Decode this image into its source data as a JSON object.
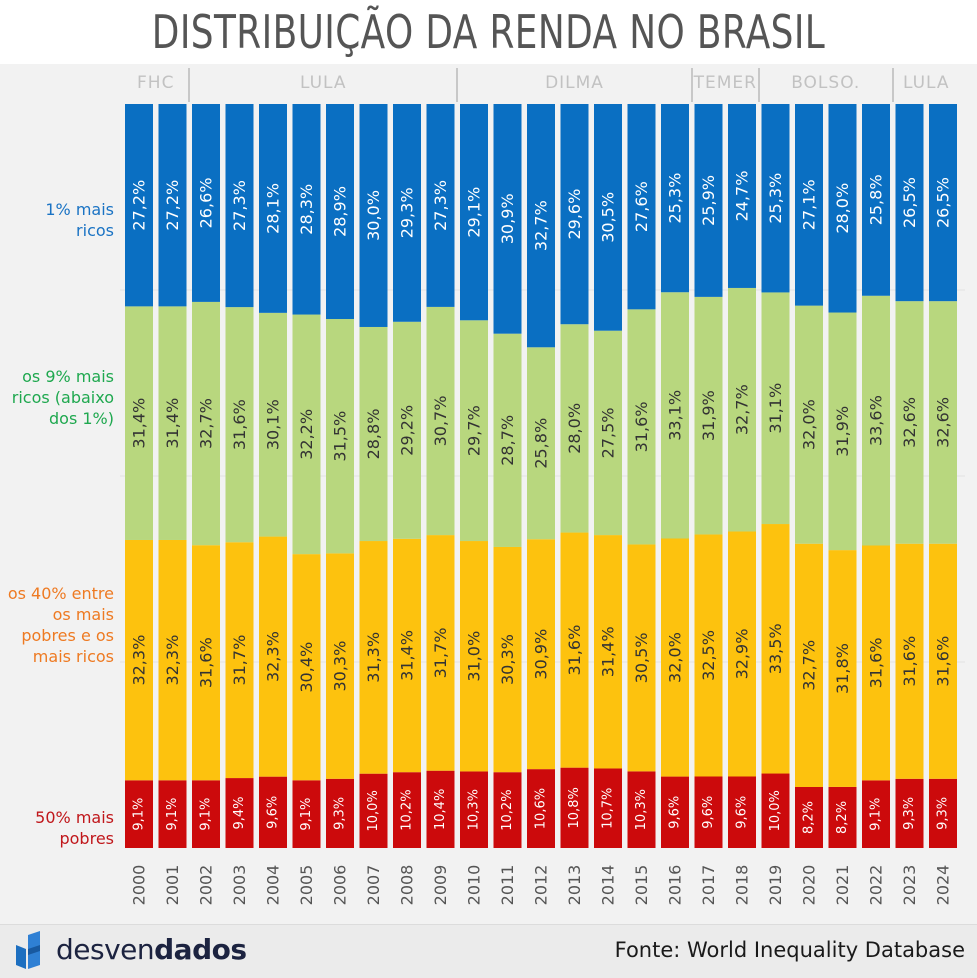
{
  "title": "DISTRIBUIÇÃO DA RENDA NO BRASIL",
  "periods": [
    {
      "label": "FHC",
      "start": 0,
      "end": 1
    },
    {
      "label": "LULA",
      "start": 2,
      "end": 9
    },
    {
      "label": "DILMA",
      "start": 10,
      "end": 16
    },
    {
      "label": "TEMER",
      "start": 17,
      "end": 18
    },
    {
      "label": "BOLSO.",
      "start": 19,
      "end": 22
    },
    {
      "label": "LULA",
      "start": 23,
      "end": 24
    }
  ],
  "segment_labels": {
    "top1": "1% mais ricos",
    "next9": "os 9% mais ricos (abaixo dos 1%)",
    "middle40": "os 40% entre os mais pobres e os mais ricos",
    "bottom50": "50% mais pobres"
  },
  "footer": {
    "logo_light": "desven",
    "logo_bold": "dados",
    "source": "Fonte: World Inequality Database"
  },
  "colors": {
    "top1": "#0a6fc2",
    "next9": "#b8d77e",
    "middle40": "#fdc20e",
    "bottom50": "#cc0a0c",
    "top1_text": "#1a73c4",
    "next9_text": "#1fa84f",
    "middle40_text": "#ee7a22",
    "bottom50_text": "#c0171b"
  },
  "chart_data": {
    "type": "bar",
    "stacked": true,
    "percent_stacked": true,
    "categories": [
      "2000",
      "2001",
      "2002",
      "2003",
      "2004",
      "2005",
      "2006",
      "2007",
      "2008",
      "2009",
      "2010",
      "2011",
      "2012",
      "2013",
      "2014",
      "2015",
      "2016",
      "2017",
      "2018",
      "2019",
      "2020",
      "2021",
      "2022",
      "2023",
      "2024"
    ],
    "series": [
      {
        "name": "50% mais pobres",
        "key": "bottom50",
        "values": [
          9.1,
          9.1,
          9.1,
          9.4,
          9.6,
          9.1,
          9.3,
          10.0,
          10.2,
          10.4,
          10.3,
          10.2,
          10.6,
          10.8,
          10.7,
          10.3,
          9.6,
          9.6,
          9.6,
          10.0,
          8.2,
          8.2,
          9.1,
          9.3,
          9.3
        ],
        "labels": [
          "9,1%",
          "9,1%",
          "9,1%",
          "9,4%",
          "9,6%",
          "9,1%",
          "9,3%",
          "10,0%",
          "10,2%",
          "10,4%",
          "10,3%",
          "10,2%",
          "10,6%",
          "10,8%",
          "10,7%",
          "10,3%",
          "9,6%",
          "9,6%",
          "9,6%",
          "10,0%",
          "8,2%",
          "8,2%",
          "9,1%",
          "9,3%",
          "9,3%"
        ]
      },
      {
        "name": "os 40% entre os mais pobres e os mais ricos",
        "key": "middle40",
        "values": [
          32.3,
          32.3,
          31.6,
          31.7,
          32.3,
          30.4,
          30.3,
          31.3,
          31.4,
          31.7,
          31.0,
          30.3,
          30.9,
          31.6,
          31.4,
          30.5,
          32.0,
          32.5,
          32.9,
          33.5,
          32.7,
          31.8,
          31.6,
          31.6,
          31.6
        ],
        "labels": [
          "32,3%",
          "32,3%",
          "31,6%",
          "31,7%",
          "32,3%",
          "30,4%",
          "30,3%",
          "31,3%",
          "31,4%",
          "31,7%",
          "31,0%",
          "30,3%",
          "30,9%",
          "31,6%",
          "31,4%",
          "30,5%",
          "32,0%",
          "32,5%",
          "32,9%",
          "33,5%",
          "32,7%",
          "31,8%",
          "31,6%",
          "31,6%",
          "31,6%"
        ]
      },
      {
        "name": "os 9% mais ricos (abaixo dos 1%)",
        "key": "next9",
        "values": [
          31.4,
          31.4,
          32.7,
          31.6,
          30.1,
          32.2,
          31.5,
          28.8,
          29.2,
          30.7,
          29.7,
          28.7,
          25.8,
          28.0,
          27.5,
          31.6,
          33.1,
          31.9,
          32.7,
          31.1,
          32.0,
          31.9,
          33.6,
          32.6,
          32.6
        ],
        "labels": [
          "31,4%",
          "31,4%",
          "32,7%",
          "31,6%",
          "30,1%",
          "32,2%",
          "31,5%",
          "28,8%",
          "29,2%",
          "30,7%",
          "29,7%",
          "28,7%",
          "25,8%",
          "28,0%",
          "27,5%",
          "31,6%",
          "33,1%",
          "31,9%",
          "32,7%",
          "31,1%",
          "32,0%",
          "31,9%",
          "33,6%",
          "32,6%",
          "32,6%"
        ]
      },
      {
        "name": "1% mais ricos",
        "key": "top1",
        "values": [
          27.2,
          27.2,
          26.6,
          27.3,
          28.1,
          28.3,
          28.9,
          30.0,
          29.3,
          27.3,
          29.1,
          30.9,
          32.7,
          29.6,
          30.5,
          27.6,
          25.3,
          25.9,
          24.7,
          25.3,
          27.1,
          28.0,
          25.8,
          26.5,
          26.5
        ],
        "labels": [
          "27,2%",
          "27,2%",
          "26,6%",
          "27,3%",
          "28,1%",
          "28,3%",
          "28,9%",
          "30,0%",
          "29,3%",
          "27,3%",
          "29,1%",
          "30,9%",
          "32,7%",
          "29,6%",
          "30,5%",
          "27,6%",
          "25,3%",
          "25,9%",
          "24,7%",
          "25,3%",
          "27,1%",
          "28,0%",
          "25,8%",
          "26,5%",
          "26,5%"
        ]
      }
    ],
    "ylim": [
      0,
      100
    ],
    "grid": true,
    "legend": "left",
    "xlabel": "",
    "ylabel": ""
  }
}
